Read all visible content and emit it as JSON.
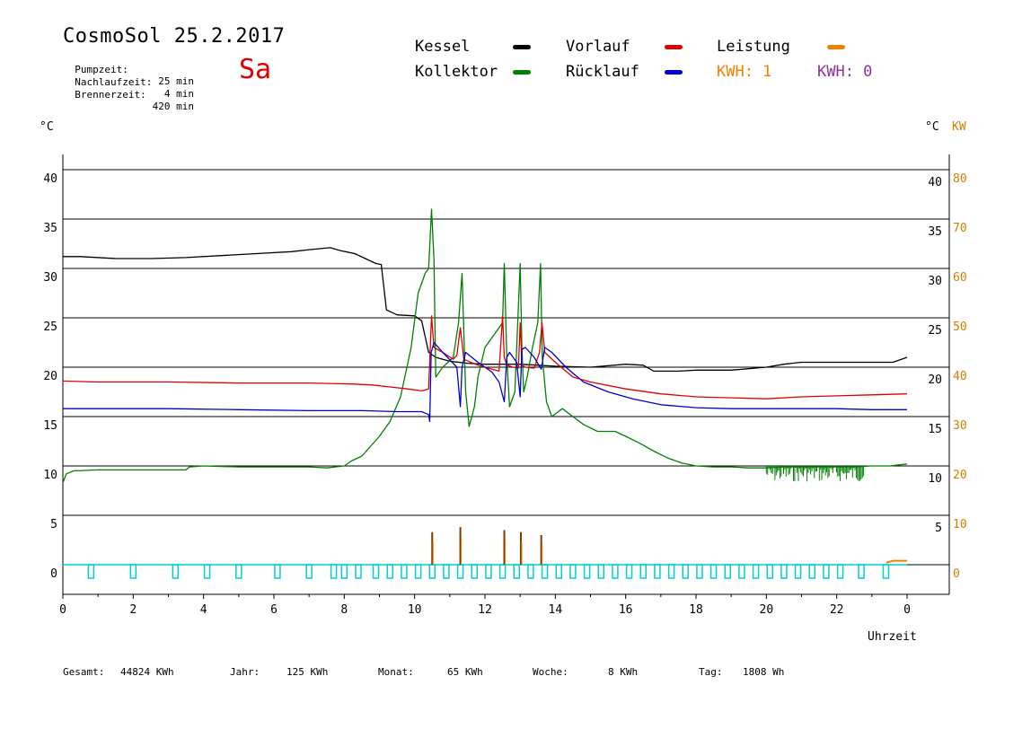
{
  "header": {
    "title": "CosmoSol 25.2.2017",
    "day": "Sa",
    "meta": [
      {
        "label": "Pumpzeit:",
        "value": "25 min"
      },
      {
        "label": "Nachlaufzeit:",
        "value": "4 min"
      },
      {
        "label": "Brennerzeit:",
        "value": "420 min"
      }
    ]
  },
  "legend": {
    "kessel": {
      "label": "Kessel",
      "color": "#000000"
    },
    "kollektor": {
      "label": "Kollektor",
      "color": "#008000"
    },
    "vorlauf": {
      "label": "Vorlauf",
      "color": "#e00000"
    },
    "ruecklauf": {
      "label": "Rücklauf",
      "color": "#0000d0"
    },
    "leistung": {
      "label": "Leistung",
      "color": "#f08000"
    },
    "kwh1": {
      "label": "KWH: 1",
      "color": "#f08000"
    },
    "kwh2": {
      "label": "KWH: 0",
      "color": "#9030a0"
    }
  },
  "axes": {
    "left_unit": "°C",
    "right_unit": "°C",
    "right_unit2": "KW",
    "x_label": "Uhrzeit"
  },
  "footer": [
    {
      "label": "Gesamt:",
      "value": "44824 KWh"
    },
    {
      "label": "Jahr:",
      "value": "125 KWh"
    },
    {
      "label": "Monat:",
      "value": "65 KWh"
    },
    {
      "label": "Woche:",
      "value": "8 KWh"
    },
    {
      "label": "Tag:",
      "value": "1808 Wh"
    }
  ],
  "chart_data": {
    "type": "line",
    "xlabel": "Uhrzeit",
    "ylabel": "°C",
    "xlim": [
      0,
      24
    ],
    "ylim": [
      -3,
      43.5
    ],
    "x_ticks": [
      "0",
      "2",
      "4",
      "6",
      "8",
      "10",
      "12",
      "14",
      "16",
      "18",
      "20",
      "22",
      "0"
    ],
    "y_ticks_left": [
      0,
      5,
      10,
      15,
      20,
      25,
      30,
      35,
      40
    ],
    "y_ticks_right": [
      5,
      10,
      15,
      20,
      25,
      30,
      35,
      40
    ],
    "y_ticks_right_kw": [
      0,
      10,
      20,
      30,
      40,
      50,
      60,
      70,
      80
    ],
    "grid": true,
    "series": [
      {
        "name": "Kessel",
        "color": "#000000",
        "x": [
          0,
          0.5,
          1.5,
          2.5,
          3.5,
          4.5,
          5.5,
          6.5,
          7.0,
          7.6,
          7.9,
          8.3,
          8.6,
          8.9,
          9.05,
          9.2,
          9.5,
          10.0,
          10.2,
          10.4,
          10.6,
          11.0,
          11.5,
          12.0,
          13.0,
          13.5,
          14.0,
          15.0,
          16.0,
          16.5,
          16.8,
          17.5,
          18.0,
          19.0,
          20.0,
          20.5,
          21.0,
          22.0,
          23.0,
          23.6,
          24.0
        ],
        "y": [
          31.2,
          31.2,
          31.0,
          31.0,
          31.1,
          31.3,
          31.5,
          31.7,
          31.9,
          32.1,
          31.8,
          31.5,
          31.0,
          30.5,
          30.4,
          25.8,
          25.3,
          25.2,
          24.7,
          21.5,
          21.0,
          20.6,
          20.4,
          20.3,
          20.3,
          20.2,
          20.1,
          20.0,
          20.3,
          20.2,
          19.6,
          19.6,
          19.7,
          19.7,
          20.0,
          20.3,
          20.5,
          20.5,
          20.5,
          20.5,
          21.0
        ]
      },
      {
        "name": "Kollektor",
        "color": "#008000",
        "x": [
          0,
          0.1,
          0.3,
          1,
          2,
          3,
          3.5,
          3.6,
          4,
          5,
          6,
          7,
          7.5,
          8.0,
          8.2,
          8.5,
          9.0,
          9.3,
          9.6,
          9.9,
          10.1,
          10.3,
          10.4,
          10.48,
          10.55,
          10.6,
          10.8,
          11.1,
          11.25,
          11.35,
          11.45,
          11.55,
          11.7,
          11.8,
          12.0,
          12.3,
          12.5,
          12.55,
          12.62,
          12.7,
          12.85,
          13.0,
          13.05,
          13.1,
          13.2,
          13.35,
          13.5,
          13.58,
          13.63,
          13.75,
          13.9,
          14.2,
          14.5,
          14.8,
          15.2,
          15.7,
          16.0,
          16.4,
          16.8,
          17.2,
          17.6,
          18.0,
          18.5,
          19.0,
          19.5,
          20.0,
          20.5,
          21,
          21.5,
          22,
          22.5,
          23,
          23.5,
          24.0
        ],
        "y": [
          8.3,
          9.2,
          9.5,
          9.6,
          9.6,
          9.6,
          9.6,
          9.9,
          10.0,
          9.9,
          9.9,
          9.9,
          9.8,
          10.0,
          10.5,
          11.0,
          13.0,
          14.5,
          17.0,
          22.0,
          27.5,
          29.5,
          30.0,
          36.0,
          31.0,
          19.0,
          20.0,
          21.0,
          24.5,
          29.5,
          17.5,
          14.0,
          16.0,
          19.0,
          22.0,
          23.5,
          24.5,
          30.5,
          21.0,
          16.0,
          17.5,
          30.5,
          22.0,
          17.5,
          19.0,
          22.0,
          24.5,
          30.5,
          21.0,
          16.5,
          15.0,
          15.8,
          15.0,
          14.2,
          13.5,
          13.5,
          13.0,
          12.3,
          11.5,
          10.8,
          10.3,
          10.0,
          9.9,
          9.9,
          9.8,
          9.8,
          9.9,
          9.9,
          9.9,
          9.9,
          9.9,
          10.0,
          10.0,
          10.2
        ]
      },
      {
        "name": "Vorlauf",
        "color": "#e00000",
        "x": [
          0,
          1,
          3,
          5,
          7,
          8.2,
          8.8,
          9.3,
          9.8,
          10.2,
          10.4,
          10.48,
          10.55,
          10.8,
          11.1,
          11.2,
          11.3,
          11.4,
          11.8,
          12.2,
          12.4,
          12.5,
          12.55,
          12.62,
          12.8,
          12.95,
          13.0,
          13.05,
          13.15,
          13.4,
          13.55,
          13.62,
          13.7,
          14.0,
          14.5,
          15.0,
          16.0,
          17.0,
          18.0,
          19.0,
          20.0,
          21.0,
          22.0,
          23.0,
          24.0
        ],
        "y": [
          18.6,
          18.5,
          18.5,
          18.4,
          18.4,
          18.3,
          18.2,
          18.0,
          17.8,
          17.6,
          17.8,
          25.2,
          22.0,
          21.5,
          20.8,
          21.2,
          24.0,
          20.8,
          20.2,
          19.8,
          19.6,
          25.2,
          21.0,
          20.2,
          20.0,
          19.9,
          24.5,
          20.2,
          20.0,
          19.9,
          21.5,
          24.5,
          21.5,
          20.5,
          19.0,
          18.5,
          17.8,
          17.3,
          17.0,
          16.9,
          16.8,
          17.0,
          17.1,
          17.2,
          17.3
        ]
      },
      {
        "name": "Rücklauf",
        "color": "#0000d0",
        "x": [
          0,
          1,
          3,
          5,
          7,
          8.5,
          9.5,
          10.2,
          10.4,
          10.43,
          10.47,
          10.55,
          10.8,
          11.2,
          11.3,
          11.35,
          11.45,
          11.8,
          12.2,
          12.4,
          12.55,
          12.62,
          12.7,
          12.9,
          13.0,
          13.05,
          13.15,
          13.4,
          13.6,
          13.7,
          13.9,
          14.3,
          14.8,
          15.5,
          16.2,
          17.0,
          18.0,
          19.0,
          20.0,
          21.0,
          22.0,
          23.0,
          24.0
        ],
        "y": [
          15.8,
          15.8,
          15.8,
          15.7,
          15.6,
          15.6,
          15.5,
          15.5,
          15.2,
          14.5,
          21.5,
          22.5,
          21.5,
          20.0,
          16.0,
          20.0,
          21.5,
          20.5,
          19.5,
          18.5,
          16.5,
          21.0,
          21.5,
          20.5,
          17.0,
          21.8,
          22.0,
          21.0,
          19.8,
          22.0,
          21.5,
          20.0,
          18.5,
          17.5,
          16.8,
          16.2,
          15.9,
          15.8,
          15.8,
          15.8,
          15.8,
          15.7,
          15.7
        ]
      }
    ],
    "power_spikes": {
      "name": "Leistung",
      "color": "#f08000",
      "x": [
        10.5,
        11.3,
        12.55,
        13.02,
        13.6
      ],
      "y": [
        3.3,
        3.8,
        3.5,
        3.3,
        3.0
      ]
    },
    "kwh_curve": {
      "name": "KWH: 1",
      "color": "#f08000",
      "x": [
        23.4,
        23.6,
        24.0
      ],
      "y": [
        0.2,
        0.4,
        0.4
      ]
    },
    "pump": {
      "color": "#00d0d0",
      "x": [
        0.8,
        2.0,
        3.2,
        4.1,
        5.0,
        6.1,
        7.0,
        7.7,
        8.0,
        8.4,
        8.9,
        9.3,
        9.7,
        10.1,
        10.5,
        10.9,
        11.3,
        11.7,
        12.1,
        12.5,
        12.9,
        13.3,
        13.7,
        14.1,
        14.5,
        14.9,
        15.3,
        15.7,
        16.1,
        16.5,
        16.9,
        17.3,
        17.7,
        18.1,
        18.5,
        18.9,
        19.3,
        19.7,
        20.1,
        20.5,
        20.9,
        21.3,
        21.7,
        22.1,
        22.7,
        23.4
      ]
    }
  }
}
